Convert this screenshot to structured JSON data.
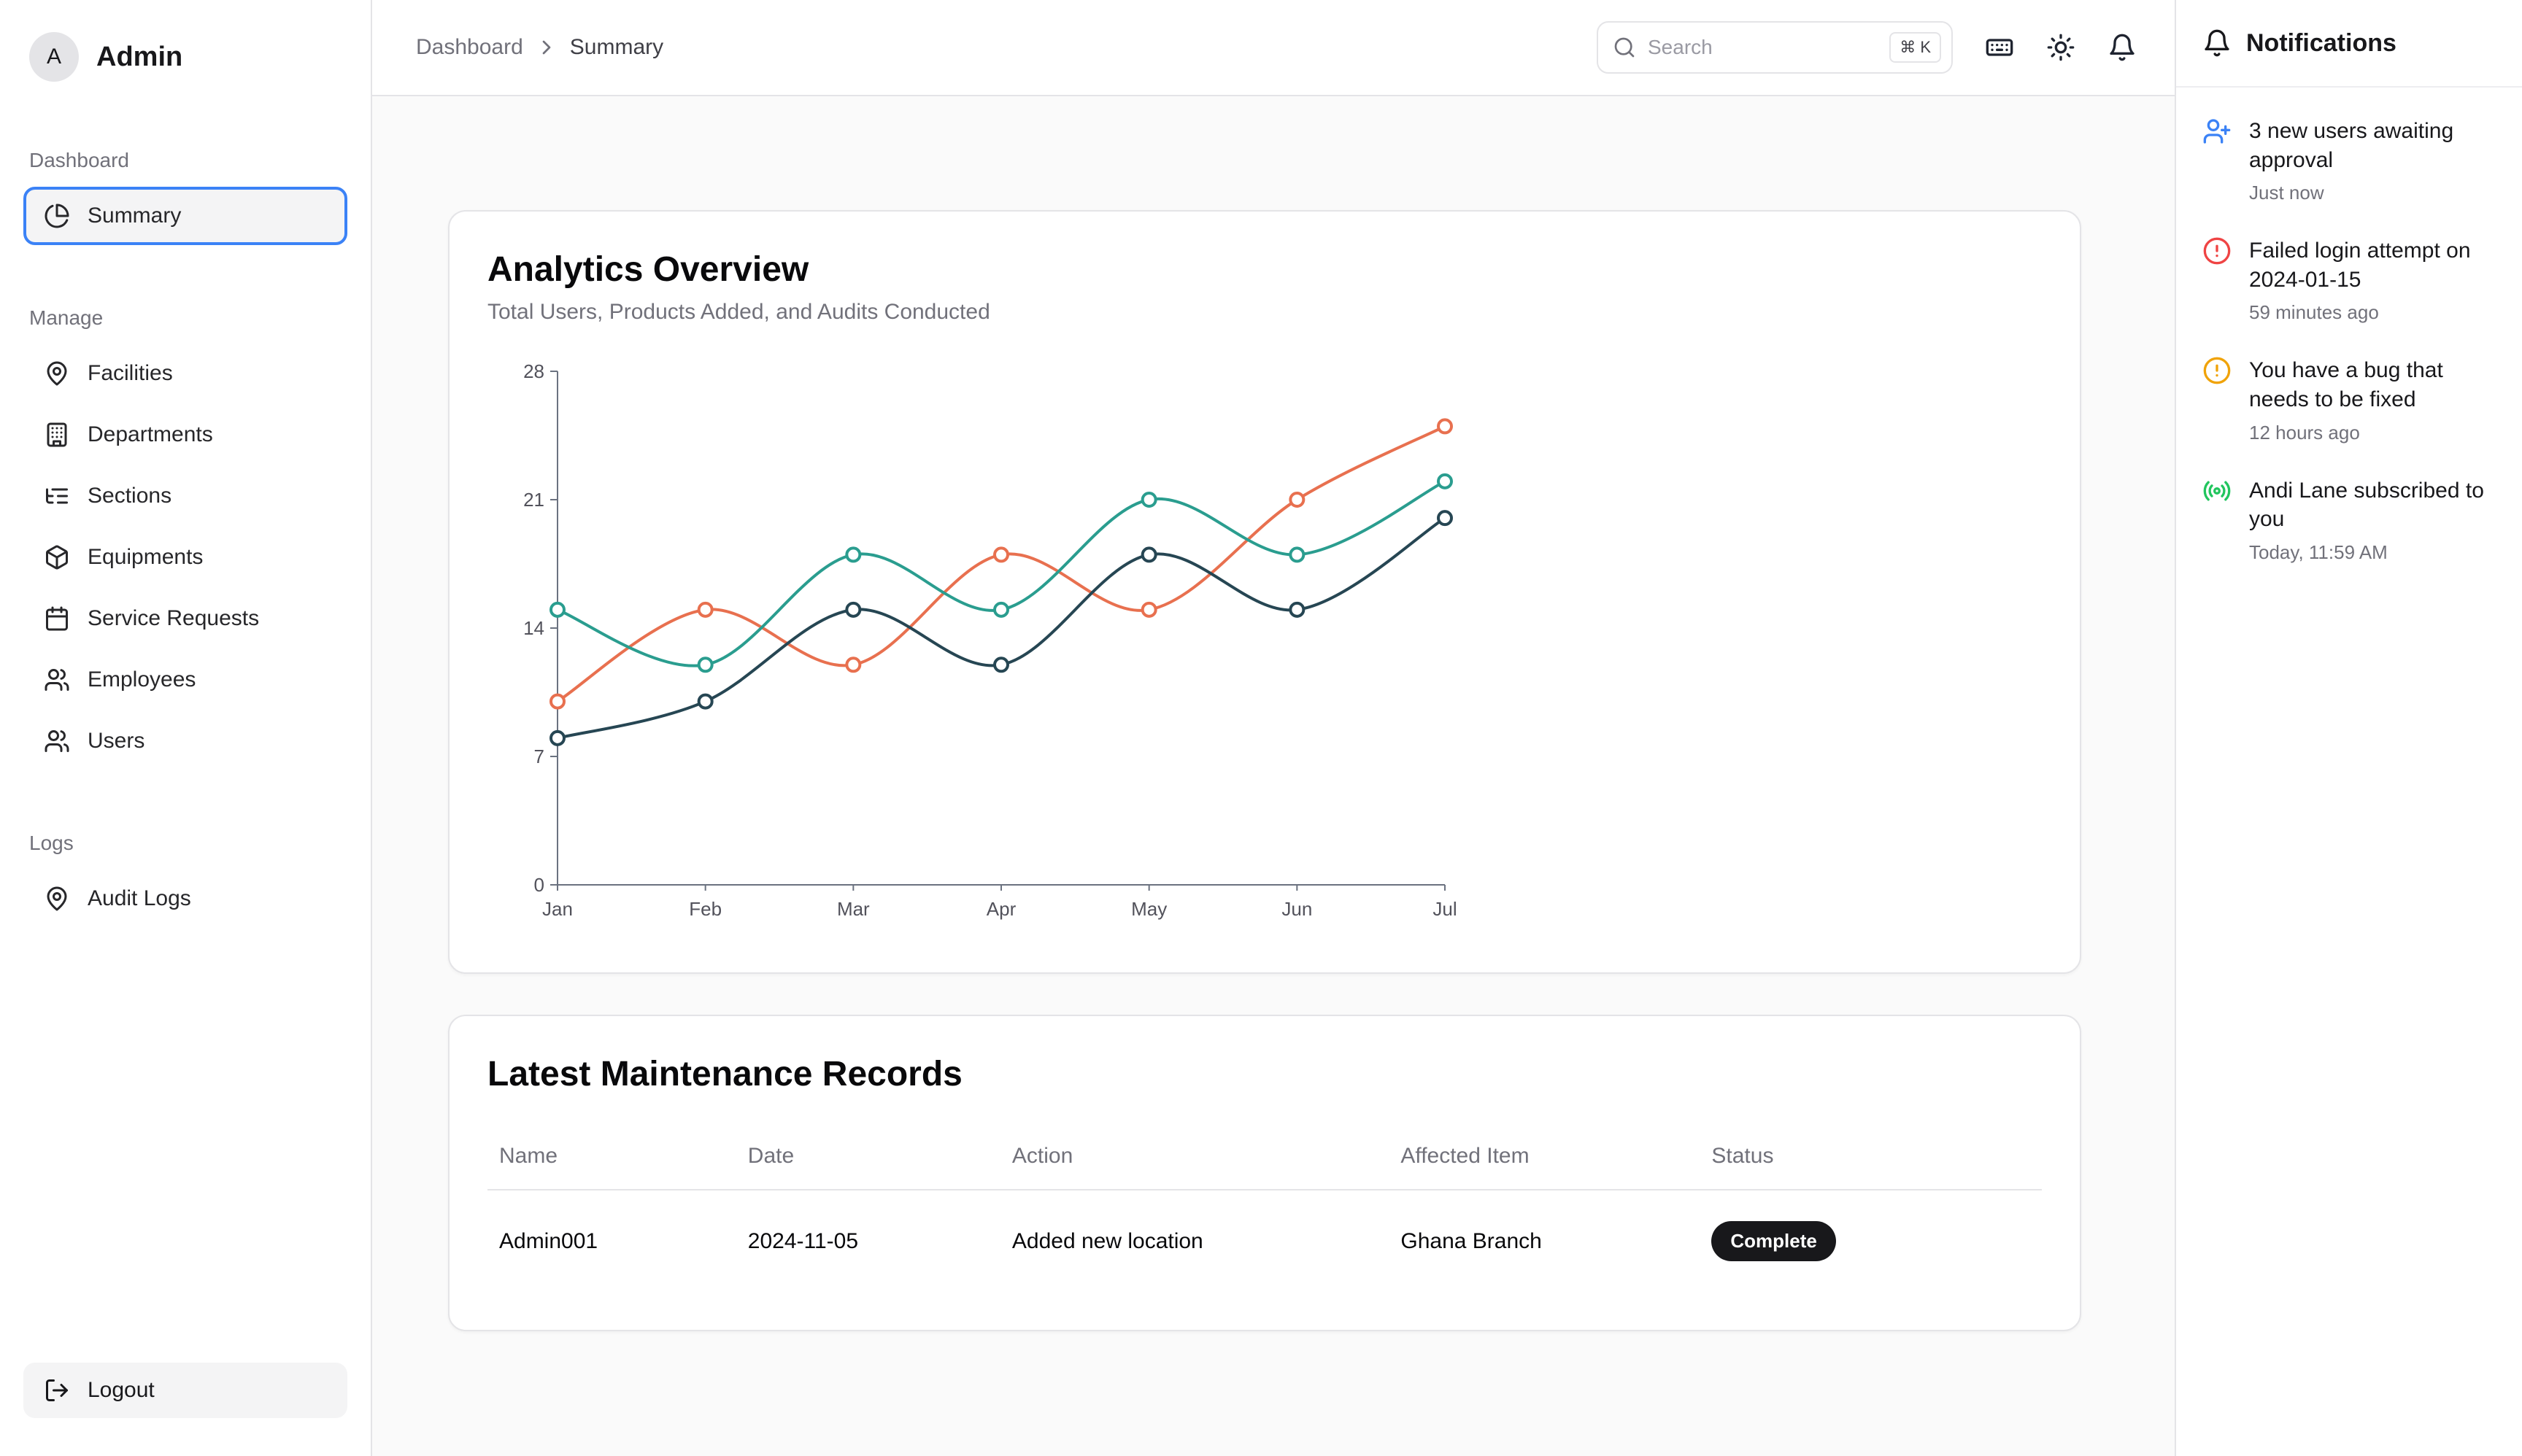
{
  "sidebar": {
    "user": {
      "initial": "A",
      "name": "Admin"
    },
    "sections": [
      {
        "label": "Dashboard",
        "items": [
          {
            "label": "Summary",
            "icon": "pie-chart",
            "active": true
          }
        ]
      },
      {
        "label": "Manage",
        "items": [
          {
            "label": "Facilities",
            "icon": "map-pin"
          },
          {
            "label": "Departments",
            "icon": "building"
          },
          {
            "label": "Sections",
            "icon": "list-tree"
          },
          {
            "label": "Equipments",
            "icon": "package"
          },
          {
            "label": "Service Requests",
            "icon": "calendar"
          },
          {
            "label": "Employees",
            "icon": "users"
          },
          {
            "label": "Users",
            "icon": "users"
          }
        ]
      },
      {
        "label": "Logs",
        "items": [
          {
            "label": "Audit Logs",
            "icon": "map-pin"
          }
        ]
      }
    ],
    "logout": {
      "label": "Logout"
    }
  },
  "header": {
    "breadcrumb": {
      "items": [
        "Dashboard",
        "Summary"
      ]
    },
    "search": {
      "placeholder": "Search",
      "shortcut": "⌘ K"
    }
  },
  "analytics": {
    "title": "Analytics Overview",
    "subtitle": "Total Users, Products Added, and Audits Conducted"
  },
  "chart_data": {
    "type": "line",
    "title": "Analytics Overview",
    "subtitle": "Total Users, Products Added, and Audits Conducted",
    "x": [
      "Jan",
      "Feb",
      "Mar",
      "Apr",
      "May",
      "Jun",
      "Jul"
    ],
    "ylim": [
      0,
      28
    ],
    "yticks": [
      0,
      7,
      14,
      21,
      28
    ],
    "grid": false,
    "legend": "none",
    "marker": "open-circle",
    "series": [
      {
        "name": "orange",
        "color": "#e8704f",
        "values": [
          10,
          15,
          12,
          18,
          15,
          21,
          25
        ]
      },
      {
        "name": "teal",
        "color": "#2a9d8f",
        "values": [
          15,
          12,
          18,
          15,
          21,
          18,
          22
        ]
      },
      {
        "name": "navy",
        "color": "#264653",
        "values": [
          8,
          10,
          15,
          12,
          18,
          15,
          20
        ]
      }
    ]
  },
  "maintenance": {
    "title": "Latest Maintenance Records",
    "columns": [
      "Name",
      "Date",
      "Action",
      "Affected Item",
      "Status"
    ],
    "rows": [
      {
        "name": "Admin001",
        "date": "2024-11-05",
        "action": "Added new location",
        "affected_item": "Ghana Branch",
        "status": "Complete"
      }
    ]
  },
  "notifications": {
    "title": "Notifications",
    "items": [
      {
        "icon": "user-plus",
        "color": "#3b82f6",
        "text": "3 new users awaiting approval",
        "time": "Just now"
      },
      {
        "icon": "alert-circle",
        "color": "#ef4444",
        "text": "Failed login attempt on 2024-01-15",
        "time": "59 minutes ago"
      },
      {
        "icon": "alert-circle",
        "color": "#f0a30a",
        "text": "You have a bug that needs to be fixed",
        "time": "12 hours ago"
      },
      {
        "icon": "radio",
        "color": "#22c55e",
        "text": "Andi Lane subscribed to you",
        "time": "Today, 11:59 AM"
      }
    ]
  }
}
